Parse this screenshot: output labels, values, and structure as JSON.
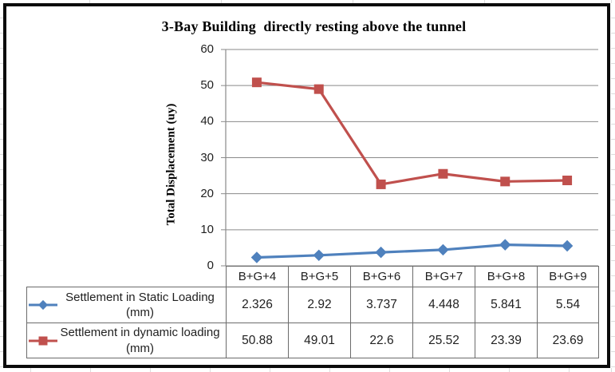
{
  "chart_data": {
    "type": "line",
    "title": "3-Bay Building  directly resting above the tunnel",
    "ylabel": "Total Displacement (uy)",
    "categories": [
      "B+G+4",
      "B+G+5",
      "B+G+6",
      "B+G+7",
      "B+G+8",
      "B+G+9"
    ],
    "series": [
      {
        "name": "Settlement in Static Loading (mm)",
        "marker": "diamond",
        "color": "#4F81BD",
        "values": [
          2.326,
          2.92,
          3.737,
          4.448,
          5.841,
          5.54
        ]
      },
      {
        "name": "Settlement in dynamic loading (mm)",
        "marker": "square",
        "color": "#C0504D",
        "values": [
          50.88,
          49.01,
          22.6,
          25.52,
          23.39,
          23.69
        ]
      }
    ],
    "ylim": [
      0,
      60
    ],
    "ytick_step": 10,
    "yticks": [
      "0",
      "10",
      "20",
      "30",
      "40",
      "50",
      "60"
    ],
    "grid": true,
    "legend_position": "data-table-left-column",
    "data_table": true
  },
  "colors": {
    "grid": "#8a8a8a",
    "axis": "#8a8a8a",
    "table_border": "#6b6b6b",
    "frame": "#0b0b0b",
    "static_series": "#4F81BD",
    "dynamic_series": "#C0504D"
  }
}
